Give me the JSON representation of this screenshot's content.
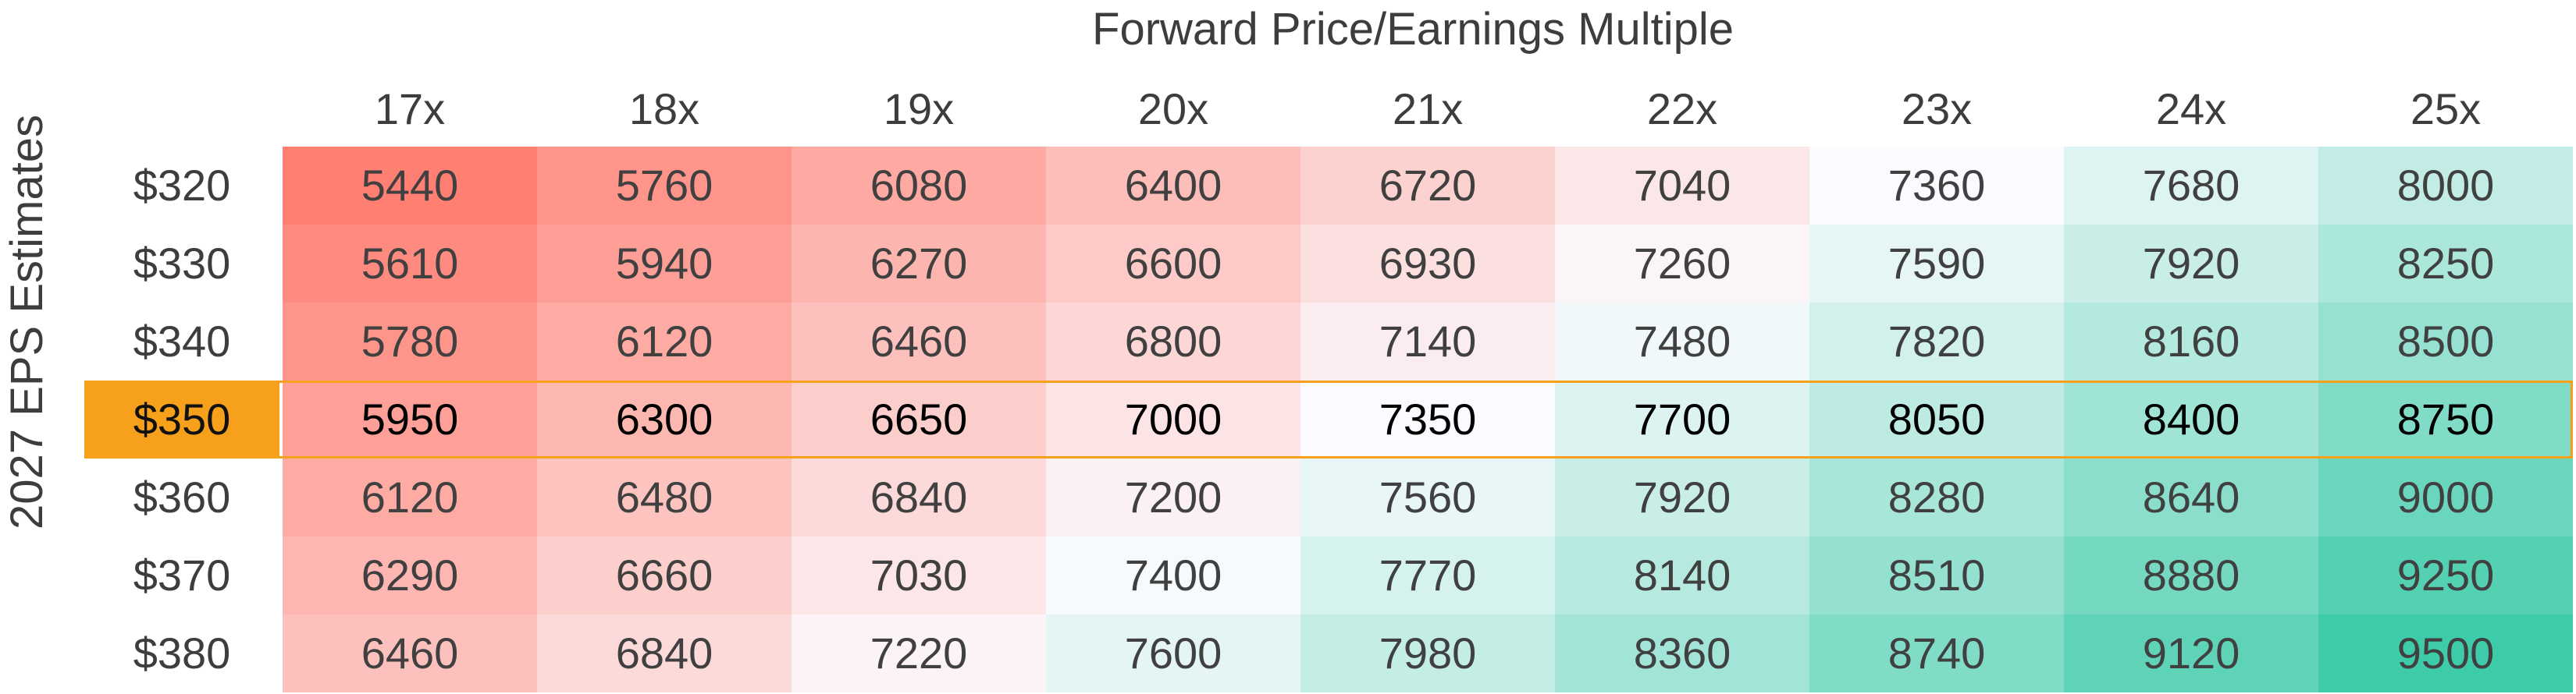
{
  "chart_data": {
    "type": "heatmap",
    "title": "",
    "xlabel": "Forward Price/Earnings Multiple",
    "ylabel": "2027 EPS Estimates",
    "columns": [
      "17x",
      "18x",
      "19x",
      "20x",
      "21x",
      "22x",
      "23x",
      "24x",
      "25x"
    ],
    "rows": [
      "$320",
      "$330",
      "$340",
      "$350",
      "$360",
      "$370",
      "$380"
    ],
    "values": [
      [
        5440,
        5760,
        6080,
        6400,
        6720,
        7040,
        7360,
        7680,
        8000
      ],
      [
        5610,
        5940,
        6270,
        6600,
        6930,
        7260,
        7590,
        7920,
        8250
      ],
      [
        5780,
        6120,
        6460,
        6800,
        7140,
        7480,
        7820,
        8160,
        8500
      ],
      [
        5950,
        6300,
        6650,
        7000,
        7350,
        7700,
        8050,
        8400,
        8750
      ],
      [
        6120,
        6480,
        6840,
        7200,
        7560,
        7920,
        8280,
        8640,
        9000
      ],
      [
        6290,
        6660,
        7030,
        7400,
        7770,
        8140,
        8510,
        8880,
        9250
      ],
      [
        6460,
        6840,
        7220,
        7600,
        7980,
        8360,
        8740,
        9120,
        9500
      ]
    ],
    "highlight_row": "$350",
    "colors": {
      "low": "#ff7f72",
      "mid": "#fbfbff",
      "high": "#3ecba9",
      "highlight": "#f7a01c"
    },
    "color_scale_midpoint": 7350
  }
}
